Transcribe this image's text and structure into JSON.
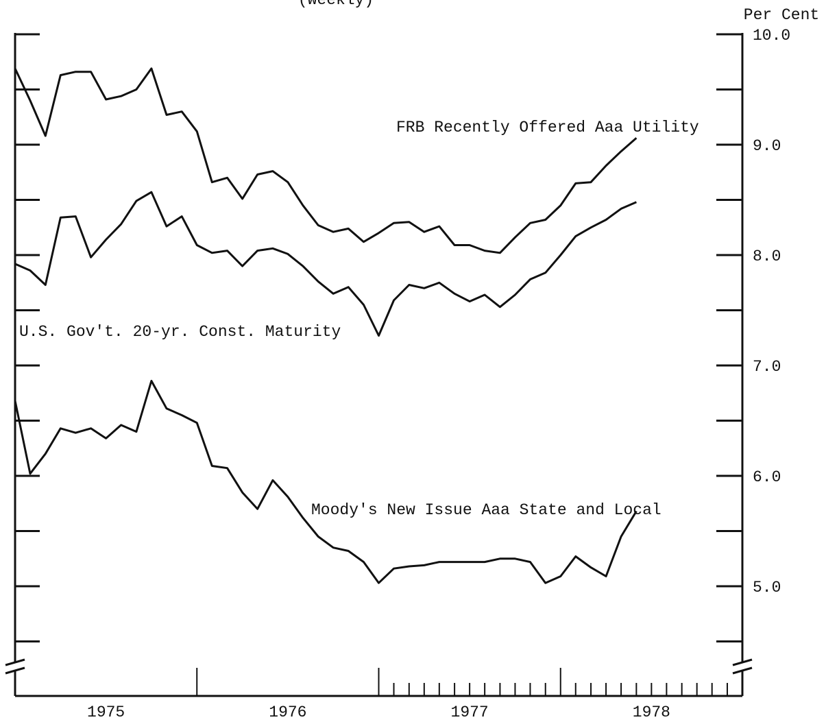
{
  "chart_data": {
    "type": "line",
    "subtitle": "(weekly)",
    "y_axis_label": "Per Cent",
    "x": [
      1975,
      1975.083,
      1975.167,
      1975.25,
      1975.333,
      1975.417,
      1975.5,
      1975.583,
      1975.667,
      1975.75,
      1975.833,
      1975.917,
      1976,
      1976.083,
      1976.167,
      1976.25,
      1976.333,
      1976.417,
      1976.5,
      1976.583,
      1976.667,
      1976.75,
      1976.833,
      1976.917,
      1977,
      1977.083,
      1977.167,
      1977.25,
      1977.333,
      1977.417,
      1977.5,
      1977.583,
      1977.667,
      1977.75,
      1977.833,
      1977.917,
      1978,
      1978.083,
      1978.167,
      1978.25,
      1978.333,
      1978.417
    ],
    "series": [
      {
        "name": "FRB Recently Offered Aaa Utility",
        "color": "#111111",
        "values": [
          9.69,
          9.4,
          9.08,
          9.63,
          9.66,
          9.66,
          9.41,
          9.44,
          9.5,
          9.69,
          9.27,
          9.3,
          9.12,
          8.66,
          8.7,
          8.51,
          8.73,
          8.76,
          8.66,
          8.45,
          8.27,
          8.21,
          8.24,
          8.12,
          8.2,
          8.29,
          8.3,
          8.21,
          8.26,
          8.09,
          8.09,
          8.04,
          8.02,
          8.16,
          8.29,
          8.32,
          8.45,
          8.65,
          8.66,
          8.81,
          8.94,
          9.06
        ]
      },
      {
        "name": "U.S. Gov't. 20-yr. Const. Maturity",
        "color": "#111111",
        "values": [
          7.92,
          7.86,
          7.73,
          8.34,
          8.35,
          7.98,
          8.14,
          8.28,
          8.49,
          8.57,
          8.26,
          8.35,
          8.09,
          8.02,
          8.04,
          7.9,
          8.04,
          8.06,
          8.01,
          7.9,
          7.76,
          7.65,
          7.71,
          7.55,
          7.27,
          7.59,
          7.73,
          7.7,
          7.75,
          7.65,
          7.58,
          7.64,
          7.53,
          7.64,
          7.78,
          7.84,
          8.0,
          8.17,
          8.25,
          8.32,
          8.42,
          8.48
        ]
      },
      {
        "name": "Moody's New Issue Aaa State and Local",
        "color": "#111111",
        "values": [
          6.68,
          6.02,
          6.2,
          6.43,
          6.39,
          6.43,
          6.34,
          6.46,
          6.4,
          6.86,
          6.61,
          6.55,
          6.48,
          6.09,
          6.07,
          5.85,
          5.7,
          5.96,
          5.81,
          5.62,
          5.45,
          5.35,
          5.32,
          5.22,
          5.03,
          5.16,
          5.18,
          5.19,
          5.22,
          5.22,
          5.22,
          5.22,
          5.25,
          5.25,
          5.22,
          5.03,
          5.09,
          5.27,
          5.17,
          5.09,
          5.45,
          5.68
        ]
      }
    ],
    "xlim": [
      1975,
      1979
    ],
    "ylim": [
      4,
      10
    ],
    "yticks": [
      {
        "value": 5,
        "label": "5.0"
      },
      {
        "value": 6,
        "label": "6.0"
      },
      {
        "value": 7,
        "label": "7.0"
      },
      {
        "value": 8,
        "label": "8.0"
      },
      {
        "value": 9,
        "label": "9.0"
      },
      {
        "value": 10,
        "label": "10.0"
      }
    ],
    "yticks_minor": [
      4.5,
      5.5,
      6.5,
      7.5,
      8.5,
      9.5
    ],
    "xticks": [
      {
        "value": 1975.5,
        "label": "1975"
      },
      {
        "value": 1976.5,
        "label": "1976"
      },
      {
        "value": 1977.5,
        "label": "1977"
      },
      {
        "value": 1978.5,
        "label": "1978"
      }
    ],
    "x_year_ticks": [
      1976,
      1977,
      1978
    ],
    "x_month_ticks": [
      1977.083,
      1977.167,
      1977.25,
      1977.333,
      1977.417,
      1977.5,
      1977.583,
      1977.667,
      1977.75,
      1977.833,
      1977.917,
      1978.083,
      1978.167,
      1978.25,
      1978.333,
      1978.417,
      1978.5,
      1978.583,
      1978.667,
      1978.75,
      1978.833,
      1978.917
    ]
  }
}
